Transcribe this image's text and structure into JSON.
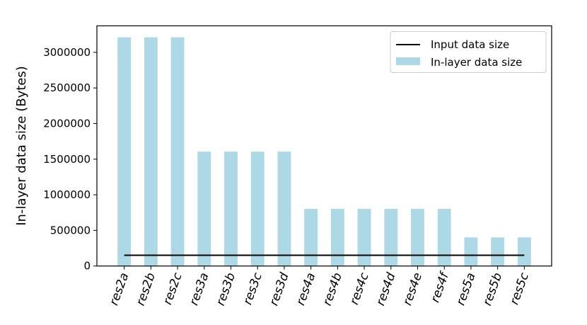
{
  "chart_data": {
    "type": "bar",
    "title": "",
    "xlabel": "",
    "ylabel": "In-layer data size (Bytes)",
    "categories": [
      "res2a",
      "res2b",
      "res2c",
      "res3a",
      "res3b",
      "res3c",
      "res3d",
      "res4a",
      "res4b",
      "res4c",
      "res4d",
      "res4e",
      "res4f",
      "res5a",
      "res5b",
      "res5c"
    ],
    "series": [
      {
        "name": "In-layer data size",
        "type": "bar",
        "color": "#add8e6",
        "values": [
          3211264,
          3211264,
          3211264,
          1605632,
          1605632,
          1605632,
          1605632,
          802816,
          802816,
          802816,
          802816,
          802816,
          802816,
          401408,
          401408,
          401408
        ]
      },
      {
        "name": "Input data size",
        "type": "line",
        "color": "#000000",
        "values": [
          150528,
          150528,
          150528,
          150528,
          150528,
          150528,
          150528,
          150528,
          150528,
          150528,
          150528,
          150528,
          150528,
          150528,
          150528,
          150528
        ]
      }
    ],
    "yticks": [
      0,
      500000,
      1000000,
      1500000,
      2000000,
      2500000,
      3000000
    ],
    "ylim": [
      0,
      3371827
    ],
    "grid": false,
    "legend": "top-right"
  }
}
